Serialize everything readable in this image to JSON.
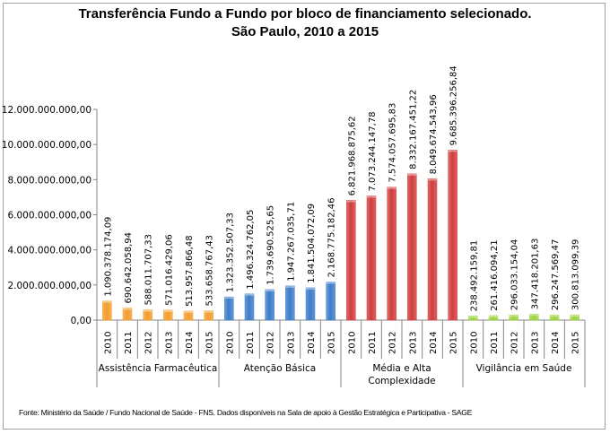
{
  "chart_data": {
    "type": "bar",
    "title_line1": "Transferência Fundo a Fundo por bloco de financiamento selecionado.",
    "title_line2": "São Paulo, 2010 a 2015",
    "ylim": [
      0,
      12000000000
    ],
    "yticks": [
      "0,00",
      "2.000.000.000,00",
      "4.000.000.000,00",
      "6.000.000.000,00",
      "8.000.000.000,00",
      "10.000.000.000,00",
      "12.000.000.000,00"
    ],
    "grid": false,
    "years": [
      "2010",
      "2011",
      "2012",
      "2013",
      "2014",
      "2015"
    ],
    "groups": [
      {
        "name": "Assistência Farmacêutica",
        "color": "#f39c2b",
        "values": [
          1090378174.09,
          690642058.94,
          588011707.33,
          571016429.06,
          513957866.48,
          533658767.43
        ],
        "labels": [
          "1.090.378.174,09",
          "690.642.058,94",
          "588.011.707,33",
          "571.016.429,06",
          "513.957.866,48",
          "533.658.767,43"
        ]
      },
      {
        "name": "Atenção Básica",
        "color": "#3d7cc9",
        "values": [
          1323352507.33,
          1496324762.05,
          1739690525.65,
          1947267035.71,
          1841504072.09,
          2168775182.46
        ],
        "labels": [
          "1.323.352.507,33",
          "1.496.324.762,05",
          "1.739.690.525,65",
          "1.947.267.035,71",
          "1.841.504.072,09",
          "2.168.775.182,46"
        ]
      },
      {
        "name": "Média e Alta Complexidade",
        "name_lines": [
          "Média e Alta",
          "Complexidade"
        ],
        "color": "#d23c3c",
        "values": [
          6821968875.62,
          7073244147.78,
          7574057695.83,
          8332167451.22,
          8049674543.96,
          9685396256.84
        ],
        "labels": [
          "6.821.968.875,62",
          "7.073.244.147,78",
          "7.574.057.695,83",
          "8.332.167.451,22",
          "8.049.674.543,96",
          "9.685.396.256,84"
        ]
      },
      {
        "name": "Vigilância em Saúde",
        "color": "#9bd33a",
        "values": [
          238492159.81,
          261416094.21,
          296033154.04,
          347418201.63,
          296247569.47,
          300813099.39
        ],
        "labels": [
          "238.492.159,81",
          "261.416.094,21",
          "296.033.154,04",
          "347.418.201,63",
          "296.247.569,47",
          "300.813.099,39"
        ]
      }
    ]
  },
  "source": "Fonte: Ministério da Saúde / Fundo Nacional de Saúde - FNS. Dados disponíveis na Sala de apoio à Gestão Estratégica e Participativa - SAGE"
}
